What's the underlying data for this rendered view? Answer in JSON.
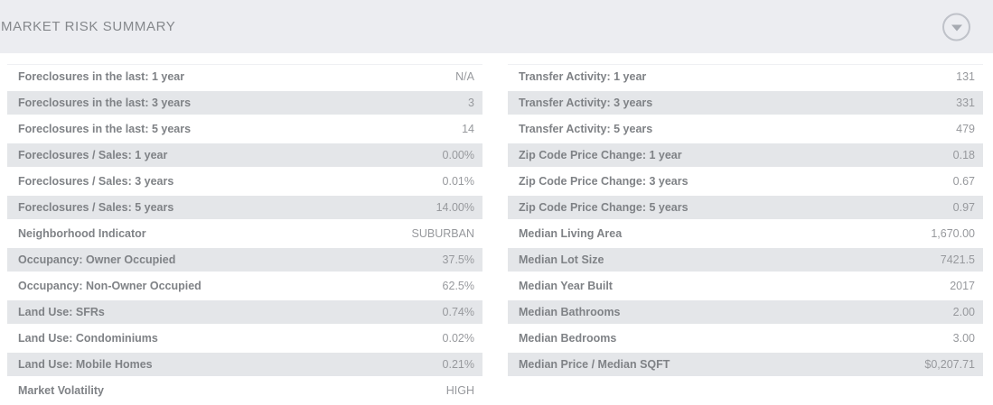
{
  "header": {
    "title": "MARKET RISK SUMMARY",
    "collapse_icon": "chevron-down-circle"
  },
  "colors": {
    "header_bg": "#ecedf1",
    "row_stripe": "#e4e6e9",
    "label_text": "#7f8286",
    "value_text": "#97999d",
    "icon_outline": "#bfc2c9"
  },
  "left_rows": [
    {
      "label": "Foreclosures in the last: 1 year",
      "value": "N/A"
    },
    {
      "label": "Foreclosures in the last: 3 years",
      "value": "3"
    },
    {
      "label": "Foreclosures in the last: 5 years",
      "value": "14"
    },
    {
      "label": "Foreclosures / Sales: 1 year",
      "value": "0.00%"
    },
    {
      "label": "Foreclosures / Sales: 3 years",
      "value": "0.01%"
    },
    {
      "label": "Foreclosures / Sales: 5 years",
      "value": "14.00%"
    },
    {
      "label": "Neighborhood Indicator",
      "value": "SUBURBAN"
    },
    {
      "label": "Occupancy: Owner Occupied",
      "value": "37.5%"
    },
    {
      "label": "Occupancy: Non-Owner Occupied",
      "value": "62.5%"
    },
    {
      "label": "Land Use: SFRs",
      "value": "0.74%"
    },
    {
      "label": "Land Use: Condominiums",
      "value": "0.02%"
    },
    {
      "label": "Land Use: Mobile Homes",
      "value": "0.21%"
    },
    {
      "label": "Market Volatility",
      "value": "HIGH"
    }
  ],
  "right_rows": [
    {
      "label": "Transfer Activity: 1 year",
      "value": "131"
    },
    {
      "label": "Transfer Activity: 3 years",
      "value": "331"
    },
    {
      "label": "Transfer Activity: 5 years",
      "value": "479"
    },
    {
      "label": "Zip Code Price Change: 1 year",
      "value": "0.18"
    },
    {
      "label": "Zip Code Price Change: 3 years",
      "value": "0.67"
    },
    {
      "label": "Zip Code Price Change: 5 years",
      "value": "0.97"
    },
    {
      "label": "Median Living Area",
      "value": "1,670.00"
    },
    {
      "label": "Median Lot Size",
      "value": "7421.5"
    },
    {
      "label": "Median Year Built",
      "value": "2017"
    },
    {
      "label": "Median Bathrooms",
      "value": "2.00"
    },
    {
      "label": "Median Bedrooms",
      "value": "3.00"
    },
    {
      "label": "Median Price / Median SQFT",
      "value": "$0,207.71"
    }
  ]
}
